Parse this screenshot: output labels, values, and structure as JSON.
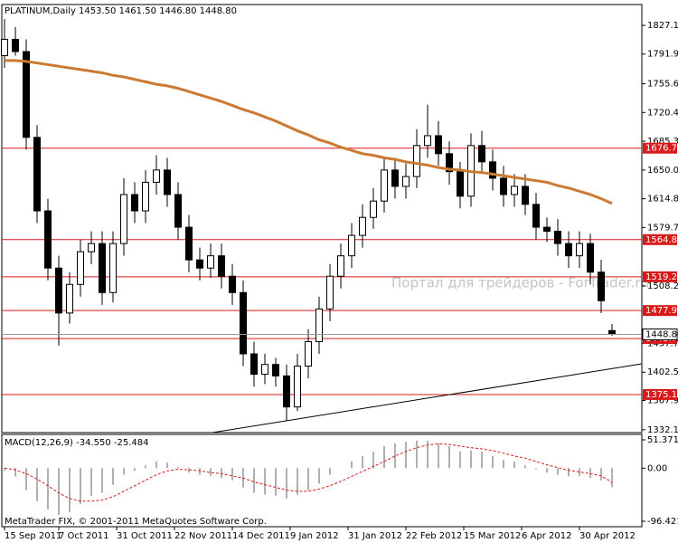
{
  "chart_data": {
    "type": "candlestick",
    "title": "PLATINUM,Daily  1453.50 1461.50 1446.80 1448.80",
    "watermark": "Портал для трейдеров - ForTrader.ru",
    "copyright": "MetaTrader FIX, © 2001-2011 MetaQuotes Software Corp.",
    "x": [
      0,
      3,
      6,
      9,
      12,
      15,
      18,
      21,
      24,
      27,
      30,
      33,
      36,
      39,
      42,
      45,
      48,
      51,
      54,
      57,
      60,
      63,
      66,
      69,
      72,
      75,
      78,
      81,
      84,
      87,
      90,
      93,
      96,
      99,
      102,
      105,
      108,
      111,
      114,
      117,
      120,
      123,
      126,
      129,
      132,
      135,
      138,
      141,
      144,
      147,
      150,
      153,
      156,
      159,
      162,
      165,
      168
    ],
    "open": [
      1790,
      1810,
      1795,
      1690,
      1600,
      1530,
      1475,
      1510,
      1550,
      1560,
      1500,
      1560,
      1620,
      1600,
      1635,
      1650,
      1620,
      1580,
      1540,
      1530,
      1545,
      1520,
      1500,
      1425,
      1400,
      1412,
      1398,
      1360,
      1410,
      1440,
      1480,
      1520,
      1545,
      1570,
      1592,
      1612,
      1650,
      1630,
      1642,
      1680,
      1692,
      1670,
      1648,
      1618,
      1680,
      1660,
      1640,
      1620,
      1630,
      1608,
      1580,
      1575,
      1560,
      1545,
      1560,
      1525,
      1453.5
    ],
    "high": [
      1835,
      1825,
      1810,
      1705,
      1615,
      1545,
      1525,
      1565,
      1575,
      1575,
      1575,
      1640,
      1635,
      1650,
      1668,
      1665,
      1635,
      1595,
      1555,
      1560,
      1560,
      1535,
      1515,
      1440,
      1425,
      1420,
      1412,
      1425,
      1455,
      1495,
      1535,
      1560,
      1585,
      1608,
      1628,
      1665,
      1665,
      1658,
      1700,
      1730,
      1710,
      1685,
      1660,
      1695,
      1698,
      1675,
      1655,
      1645,
      1645,
      1622,
      1592,
      1590,
      1575,
      1575,
      1572,
      1540,
      1461.5
    ],
    "low": [
      1775,
      1790,
      1675,
      1585,
      1515,
      1435,
      1462,
      1495,
      1535,
      1485,
      1488,
      1545,
      1585,
      1585,
      1620,
      1605,
      1565,
      1525,
      1515,
      1518,
      1505,
      1485,
      1410,
      1385,
      1388,
      1385,
      1343,
      1355,
      1395,
      1425,
      1465,
      1505,
      1530,
      1555,
      1578,
      1598,
      1615,
      1615,
      1628,
      1665,
      1655,
      1632,
      1603,
      1605,
      1645,
      1625,
      1605,
      1605,
      1595,
      1565,
      1562,
      1545,
      1530,
      1530,
      1510,
      1475,
      1446.8
    ],
    "close": [
      1810,
      1795,
      1690,
      1600,
      1530,
      1475,
      1510,
      1550,
      1560,
      1500,
      1560,
      1620,
      1600,
      1635,
      1650,
      1620,
      1580,
      1540,
      1530,
      1545,
      1520,
      1500,
      1425,
      1400,
      1412,
      1398,
      1360,
      1410,
      1440,
      1480,
      1520,
      1545,
      1570,
      1592,
      1612,
      1650,
      1630,
      1642,
      1680,
      1692,
      1670,
      1648,
      1618,
      1680,
      1660,
      1640,
      1620,
      1630,
      1608,
      1580,
      1575,
      1560,
      1545,
      1560,
      1525,
      1490,
      1448.8
    ],
    "last_price_label": "1448.80",
    "ma": {
      "color": "#cc7a33",
      "values": [
        1784,
        1784,
        1783,
        1781,
        1779,
        1777,
        1775,
        1773,
        1771,
        1769,
        1766,
        1764,
        1761,
        1758,
        1755,
        1753,
        1750,
        1746,
        1742,
        1738,
        1734,
        1729,
        1724,
        1720,
        1715,
        1710,
        1704,
        1698,
        1693,
        1687,
        1683,
        1678,
        1674,
        1670,
        1668,
        1665,
        1663,
        1660,
        1658,
        1656,
        1653,
        1651,
        1650,
        1648,
        1647,
        1645,
        1643,
        1641,
        1639,
        1637,
        1635,
        1631,
        1628,
        1624,
        1620,
        1615,
        1609
      ]
    },
    "levels": [
      1676.77,
      1564.82,
      1519.29,
      1477.97,
      1443.73,
      1375.19
    ],
    "level_color": "#d91a1a",
    "trendline": {
      "x": [
        57.5,
        176.25
      ],
      "y": [
        1328.6,
        1412.8
      ]
    },
    "xlim": [
      -1.25,
      176.25
    ],
    "ylim": [
      1328.6,
      1852.6
    ],
    "yticks": [
      {
        "value": 1827.1,
        "label": "1827.10"
      },
      1791.95,
      {
        "value": 1755.6,
        "label": "1755.60"
      },
      1720.45,
      {
        "value": 1685.3,
        "label": "1685.30"
      },
      {
        "value": 1650,
        "label": "1650.00"
      },
      1614.85,
      {
        "value": 1579.7,
        "label": "1579.70"
      },
      {
        "value": 1508.2,
        "label": "1508.20"
      },
      1437.75,
      1402.55,
      {
        "value": 1367.9,
        "label": "1367.90"
      },
      {
        "value": 1332.1,
        "label": "1332.10"
      }
    ],
    "xticks": [
      {
        "value": 0,
        "label": "15 Sep 2011"
      },
      {
        "value": 15,
        "label": "7 Oct 2011"
      },
      {
        "value": 31,
        "label": "31 Oct 2011"
      },
      {
        "value": 47,
        "label": "22 Nov 2011"
      },
      {
        "value": 63,
        "label": "14 Dec 2011"
      },
      {
        "value": 79,
        "label": "9 Jan 2012"
      },
      {
        "value": 95,
        "label": "31 Jan 2012"
      },
      {
        "value": 111,
        "label": "22 Feb 2012"
      },
      {
        "value": 127,
        "label": "15 Mar 2012"
      },
      {
        "value": 143,
        "label": "6 Apr 2012"
      },
      {
        "value": 159,
        "label": "30 Apr 2012"
      }
    ],
    "macd": {
      "title": "MACD(12,26,9) -34.550 -25.484",
      "histogram": [
        -5,
        -15,
        -40,
        -60,
        -75,
        -85,
        -80,
        -65,
        -50,
        -45,
        -30,
        -12,
        -5,
        5,
        12,
        10,
        2,
        -8,
        -12,
        -14,
        -18,
        -22,
        -35,
        -45,
        -48,
        -50,
        -55,
        -48,
        -40,
        -28,
        -12,
        0,
        12,
        22,
        30,
        40,
        45,
        48,
        50,
        50,
        45,
        40,
        30,
        32,
        30,
        22,
        15,
        12,
        5,
        -2,
        -8,
        -12,
        -15,
        -14,
        -18,
        -22,
        -34.55
      ],
      "signal": [
        0,
        -3,
        -10,
        -20,
        -32,
        -45,
        -55,
        -60,
        -60,
        -58,
        -52,
        -42,
        -32,
        -22,
        -12,
        -5,
        -2,
        -3,
        -5,
        -8,
        -10,
        -14,
        -18,
        -25,
        -30,
        -35,
        -40,
        -42,
        -42,
        -38,
        -32,
        -24,
        -15,
        -6,
        3,
        12,
        22,
        30,
        37,
        42,
        44,
        43,
        40,
        37,
        35,
        32,
        27,
        22,
        18,
        12,
        6,
        1,
        -4,
        -7,
        -10,
        -14,
        -25.484
      ],
      "signal_color": "#d91a1a",
      "ylim": [
        -106.3,
        61.2
      ],
      "yticks": [
        51.371,
        {
          "value": 0,
          "label": "0.00"
        },
        -96.421
      ]
    }
  }
}
